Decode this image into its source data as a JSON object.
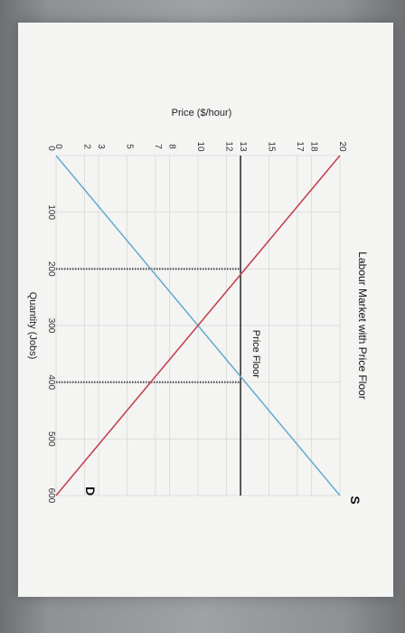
{
  "chart_data": {
    "type": "line",
    "title": "Labour Market with Price Floor",
    "xlabel": "Quantity (Jobs)",
    "ylabel": "Price ($/hour)",
    "x_ticks": [
      0,
      100,
      200,
      300,
      400,
      500,
      600
    ],
    "y_ticks": [
      0,
      2,
      3,
      5,
      7,
      8,
      10,
      12,
      13,
      15,
      17,
      18,
      20
    ],
    "xlim": [
      0,
      600
    ],
    "ylim": [
      0,
      20
    ],
    "grid": true,
    "series": [
      {
        "name": "S",
        "color": "#6aaed0",
        "x": [
          0,
          600
        ],
        "y": [
          0,
          20
        ]
      },
      {
        "name": "D",
        "color": "#c4454f",
        "x": [
          0,
          600
        ],
        "y": [
          20,
          0
        ]
      }
    ],
    "price_floor": {
      "label": "Price Floor",
      "y": 13,
      "color": "#333333"
    },
    "guide_lines": [
      {
        "x": 200,
        "y_from": 0,
        "y_to": 13
      },
      {
        "x": 400,
        "y_from": 0,
        "y_to": 13
      }
    ]
  }
}
